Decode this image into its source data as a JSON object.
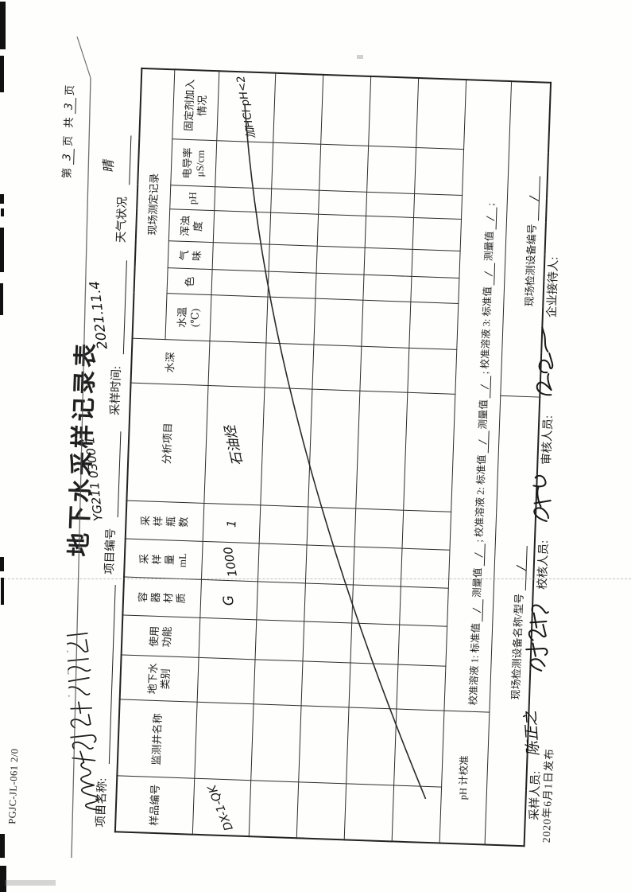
{
  "meta": {
    "doc_code": "PGJC-JL-061 2/0",
    "publish_date": "2020年6月1日发布"
  },
  "page_header": {
    "w1": "第",
    "w2": "页",
    "w3": "共",
    "w4": "页",
    "page_no": "3",
    "page_total": "3"
  },
  "title": "地下水采样记录表",
  "info": {
    "project_name_label": "项目名称:",
    "project_no_label": "项目编号",
    "project_no_value": "YG211 0300 1",
    "sample_time_label": "采样时间:",
    "sample_time_value": "2021.11.4",
    "weather_label": "天气状况",
    "weather_value": "晴"
  },
  "table": {
    "group_header": "现场测定记录",
    "columns": [
      "样品编号",
      "监测井名称",
      "地下水\n类别",
      "使用\n功能",
      "容\n器\n材\n质",
      "采\n样\n量\nmL",
      "采\n样\n瓶\n数",
      "分析项目",
      "水深"
    ],
    "measure_columns": [
      "水温\n(℃)",
      "色",
      "气\n味",
      "浑浊\n度",
      "pH",
      "电导率\nμS/cm",
      "固定剂加入\n情况"
    ],
    "row1": {
      "sample_no": "DX-1-QK",
      "container": "G",
      "volume": "1000",
      "bottles": "1",
      "analysis": "石油烃",
      "fixative": "加HCl pH<2"
    },
    "ph_row": {
      "label": "pH 计校准",
      "s1": "校准溶液 1: 标准值",
      "s2": "测量值",
      "s3": "; 校准溶液 2: 标准值",
      "s4": "测量值",
      "s5": "; 校准溶液 3: 标准值",
      "s6": "测量值",
      "s7": ";",
      "slash": "/"
    },
    "equip_row": {
      "name_label": "现场检测设备名称/型号",
      "name_value": "/",
      "code_label": "现场检测设备编号",
      "code_value": "/"
    }
  },
  "footer": {
    "sampler_label": "采样人员:",
    "sampler_signature": "陈正之",
    "checker_label": "校核人员:",
    "reviewer_label": "审核人员:",
    "receptionist_label": "企业接待人:"
  }
}
